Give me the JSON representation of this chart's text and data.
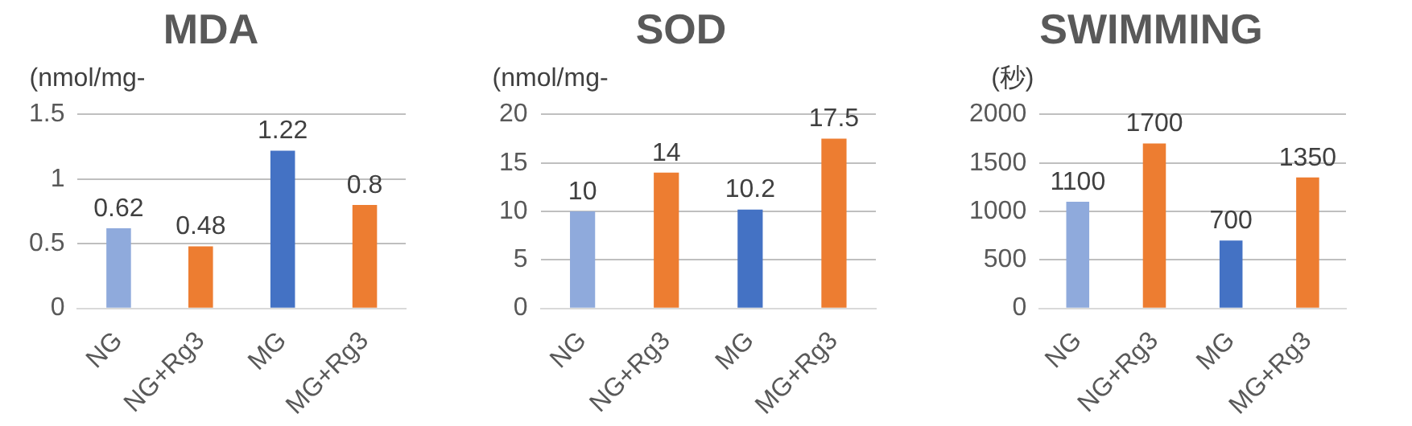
{
  "chart_data": [
    {
      "type": "bar",
      "title": "MDA",
      "ylabel": "(nmol/mg-",
      "categories": [
        "NG",
        "NG+Rg3",
        "MG",
        "MG+Rg3"
      ],
      "values": [
        0.62,
        0.48,
        1.22,
        0.8
      ],
      "colors": [
        "#8faadc",
        "#ed7d31",
        "#4472c4",
        "#ed7d31"
      ],
      "ylim": [
        0,
        1.5
      ],
      "yticks": [
        0,
        0.5,
        1,
        1.5
      ],
      "grid": "y",
      "data_labels": true
    },
    {
      "type": "bar",
      "title": "SOD",
      "ylabel": "(nmol/mg-",
      "categories": [
        "NG",
        "NG+Rg3",
        "MG",
        "MG+Rg3"
      ],
      "values": [
        10,
        14,
        10.2,
        17.5
      ],
      "colors": [
        "#8faadc",
        "#ed7d31",
        "#4472c4",
        "#ed7d31"
      ],
      "ylim": [
        0,
        20
      ],
      "yticks": [
        0,
        5,
        10,
        15,
        20
      ],
      "grid": "y",
      "data_labels": true
    },
    {
      "type": "bar",
      "title": "SWIMMING",
      "ylabel": "(秒)",
      "categories": [
        "NG",
        "NG+Rg3",
        "MG",
        "MG+Rg3"
      ],
      "values": [
        1100,
        1700,
        700,
        1350
      ],
      "colors": [
        "#8faadc",
        "#ed7d31",
        "#4472c4",
        "#ed7d31"
      ],
      "ylim": [
        0,
        2000
      ],
      "yticks": [
        0,
        500,
        1000,
        1500,
        2000
      ],
      "grid": "y",
      "data_labels": true
    }
  ]
}
